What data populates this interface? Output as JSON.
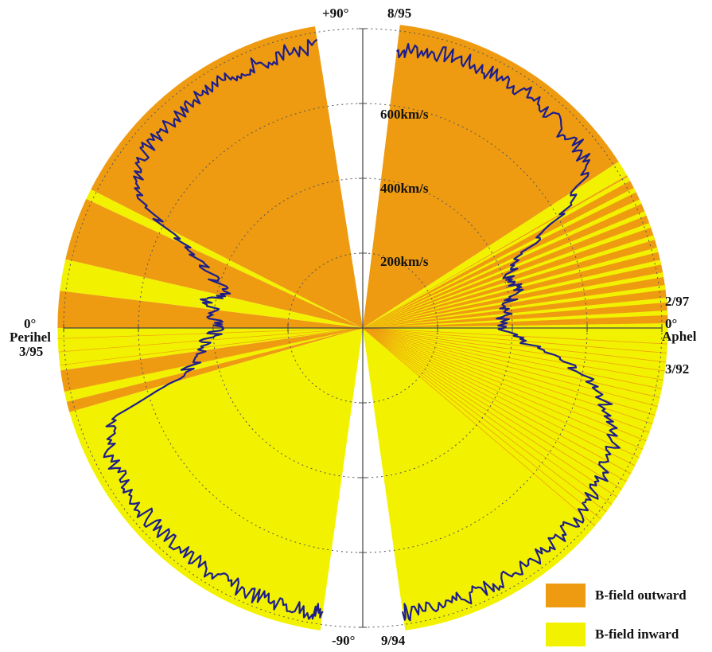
{
  "chart_data": {
    "type": "polar-line",
    "r_labels": [
      "200km/s",
      "400km/s",
      "600km/s"
    ],
    "r_max": 800,
    "top_labels": {
      "angle": "+90°",
      "date": "8/95"
    },
    "bottom_labels": {
      "angle": "-90°",
      "date": "9/94"
    },
    "left_labels": {
      "angle": "0°",
      "name": "Perihel",
      "date": "3/95"
    },
    "right_labels": {
      "date_top": "2/97",
      "angle": "0°",
      "name": "Aphel",
      "date_bottom": "3/92"
    },
    "legend": [
      {
        "label": "B-field outward",
        "color": "#EE9B12"
      },
      {
        "label": "B-field inward",
        "color": "#F2F200"
      }
    ],
    "series_color": "#1E1E8A",
    "fast_wind_speed_kms": 770,
    "series": [
      {
        "name": "right lobe (Aphel)",
        "points": [
          {
            "lat": 83,
            "v": 745
          },
          {
            "lat": 80,
            "v": 755
          },
          {
            "lat": 75,
            "v": 760
          },
          {
            "lat": 70,
            "v": 765
          },
          {
            "lat": 65,
            "v": 760
          },
          {
            "lat": 60,
            "v": 765
          },
          {
            "lat": 55,
            "v": 765
          },
          {
            "lat": 50,
            "v": 760
          },
          {
            "lat": 45,
            "v": 750
          },
          {
            "lat": 40,
            "v": 755
          },
          {
            "lat": 35,
            "v": 730
          },
          {
            "lat": 30,
            "v": 620
          },
          {
            "lat": 25,
            "v": 470
          },
          {
            "lat": 20,
            "v": 420
          },
          {
            "lat": 15,
            "v": 430
          },
          {
            "lat": 10,
            "v": 400
          },
          {
            "lat": 5,
            "v": 380
          },
          {
            "lat": 0,
            "v": 360
          },
          {
            "lat": -5,
            "v": 430
          },
          {
            "lat": -10,
            "v": 560
          },
          {
            "lat": -15,
            "v": 660
          },
          {
            "lat": -20,
            "v": 700
          },
          {
            "lat": -25,
            "v": 740
          },
          {
            "lat": -30,
            "v": 750
          },
          {
            "lat": -35,
            "v": 760
          },
          {
            "lat": -40,
            "v": 765
          },
          {
            "lat": -45,
            "v": 765
          },
          {
            "lat": -50,
            "v": 765
          },
          {
            "lat": -55,
            "v": 770
          },
          {
            "lat": -60,
            "v": 770
          },
          {
            "lat": -65,
            "v": 770
          },
          {
            "lat": -70,
            "v": 770
          },
          {
            "lat": -75,
            "v": 775
          },
          {
            "lat": -80,
            "v": 775
          },
          {
            "lat": -82,
            "v": 765
          }
        ]
      },
      {
        "name": "left lobe (Perihel)",
        "points": [
          {
            "lat": 81,
            "v": 765
          },
          {
            "lat": 75,
            "v": 765
          },
          {
            "lat": 70,
            "v": 760
          },
          {
            "lat": 65,
            "v": 760
          },
          {
            "lat": 60,
            "v": 760
          },
          {
            "lat": 55,
            "v": 760
          },
          {
            "lat": 50,
            "v": 755
          },
          {
            "lat": 45,
            "v": 760
          },
          {
            "lat": 40,
            "v": 750
          },
          {
            "lat": 35,
            "v": 730
          },
          {
            "lat": 30,
            "v": 700
          },
          {
            "lat": 25,
            "v": 520
          },
          {
            "lat": 20,
            "v": 440
          },
          {
            "lat": 15,
            "v": 380
          },
          {
            "lat": 10,
            "v": 420
          },
          {
            "lat": 5,
            "v": 400
          },
          {
            "lat": 0,
            "v": 380
          },
          {
            "lat": -5,
            "v": 420
          },
          {
            "lat": -10,
            "v": 440
          },
          {
            "lat": -15,
            "v": 500
          },
          {
            "lat": -20,
            "v": 720
          },
          {
            "lat": -25,
            "v": 750
          },
          {
            "lat": -30,
            "v": 760
          },
          {
            "lat": -35,
            "v": 760
          },
          {
            "lat": -40,
            "v": 765
          },
          {
            "lat": -45,
            "v": 765
          },
          {
            "lat": -50,
            "v": 765
          },
          {
            "lat": -55,
            "v": 770
          },
          {
            "lat": -60,
            "v": 770
          },
          {
            "lat": -65,
            "v": 770
          },
          {
            "lat": -70,
            "v": 770
          },
          {
            "lat": -75,
            "v": 770
          },
          {
            "lat": -80,
            "v": 770
          },
          {
            "lat": -82,
            "v": 765
          }
        ]
      }
    ],
    "polarity_sectors": [
      {
        "side": "right",
        "from": 33,
        "to": 83,
        "polarity": "outward"
      },
      {
        "side": "right",
        "from": 30,
        "to": 33,
        "polarity": "inward"
      },
      {
        "side": "right",
        "from": 0,
        "to": 30,
        "polarity": "mixed"
      },
      {
        "side": "right",
        "from": -82,
        "to": 0,
        "polarity": "inward"
      },
      {
        "side": "left",
        "from": 27,
        "to": 81,
        "polarity": "outward"
      },
      {
        "side": "left",
        "from": 25,
        "to": 27,
        "polarity": "inward"
      },
      {
        "side": "left",
        "from": 13,
        "to": 25,
        "polarity": "outward"
      },
      {
        "side": "left",
        "from": 7,
        "to": 13,
        "polarity": "inward"
      },
      {
        "side": "left",
        "from": 0,
        "to": 7,
        "polarity": "outward"
      },
      {
        "side": "left",
        "from": -8,
        "to": 0,
        "polarity": "inward"
      },
      {
        "side": "left",
        "from": -12,
        "to": -8,
        "polarity": "outward"
      },
      {
        "side": "left",
        "from": -14,
        "to": -12,
        "polarity": "inward"
      },
      {
        "side": "left",
        "from": -16,
        "to": -14,
        "polarity": "outward"
      },
      {
        "side": "left",
        "from": -82,
        "to": -16,
        "polarity": "inward"
      }
    ]
  }
}
